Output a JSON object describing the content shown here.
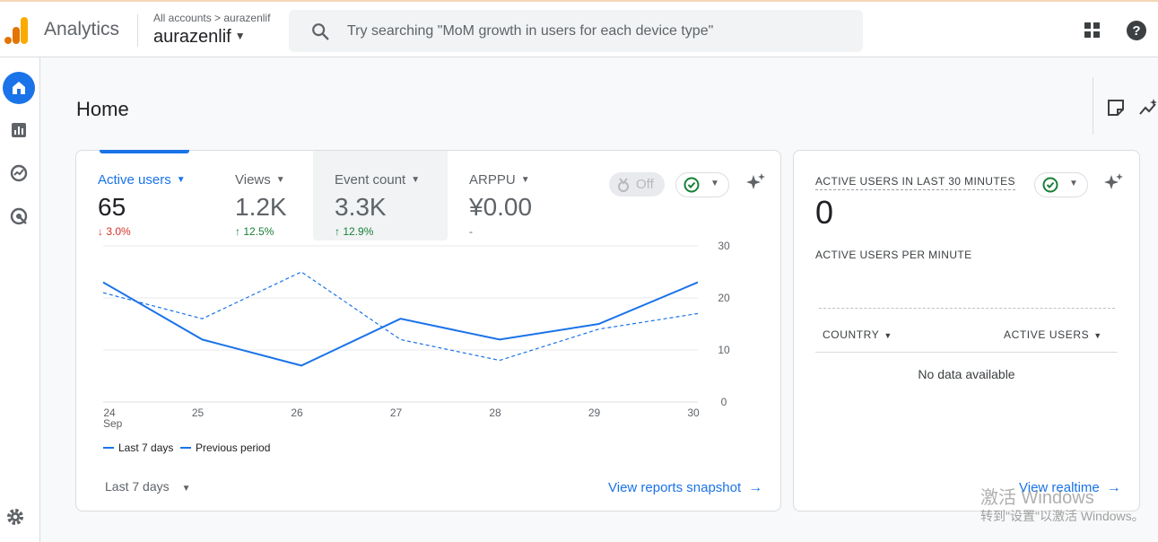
{
  "app": {
    "name": "Analytics"
  },
  "account": {
    "breadcrumb": "All accounts > aurazenlif",
    "name": "aurazenlif"
  },
  "search": {
    "placeholder": "Try searching \"MoM growth in users for each device type\""
  },
  "page": {
    "title": "Home"
  },
  "icons": {
    "logo": "analytics-logo-icon",
    "search": "search-icon",
    "apps": "apps-grid-icon",
    "help": "help-icon",
    "rail": [
      "home-icon",
      "reports-icon",
      "explore-icon",
      "advertising-icon"
    ],
    "settings": "gear-icon",
    "note": "note-icon",
    "insights": "insights-icon",
    "sparkle": "sparkle-icon"
  },
  "colors": {
    "accent": "#1a73e8",
    "up": "#188038",
    "down": "#d93025"
  },
  "metrics": [
    {
      "label": "Active users",
      "value": "65",
      "delta": "↓ 3.0%",
      "trend": "down",
      "selected": true
    },
    {
      "label": "Views",
      "value": "1.2K",
      "delta": "↑ 12.5%",
      "trend": "up"
    },
    {
      "label": "Event count",
      "value": "3.3K",
      "delta": "↑ 12.9%",
      "trend": "up"
    },
    {
      "label": "ARPPU",
      "value": "¥0.00",
      "delta": "-",
      "trend": "none"
    }
  ],
  "toolbar": {
    "off_label": "Off"
  },
  "chart_data": {
    "type": "line",
    "categories": [
      "24",
      "25",
      "26",
      "27",
      "28",
      "29",
      "30"
    ],
    "x_sublabel": "Sep",
    "series": [
      {
        "name": "Last 7 days",
        "style": "solid",
        "values": [
          23,
          12,
          7,
          16,
          12,
          15,
          23
        ]
      },
      {
        "name": "Previous period",
        "style": "dashed",
        "values": [
          21,
          16,
          25,
          12,
          8,
          14,
          17
        ]
      }
    ],
    "ylim": [
      0,
      30
    ],
    "yticks": [
      "0",
      "10",
      "20",
      "30"
    ],
    "grid": true,
    "legend": "bottom-left"
  },
  "footer": {
    "range": "Last 7 days",
    "link": "View reports snapshot"
  },
  "realtime": {
    "title": "ACTIVE USERS IN LAST 30 MINUTES",
    "value": "0",
    "per_minute": "ACTIVE USERS PER MINUTE",
    "col_country": "COUNTRY",
    "col_users": "ACTIVE USERS",
    "empty": "No data available",
    "link": "View realtime"
  },
  "watermark": {
    "line1": "激活 Windows",
    "line2": "转到\"设置\"以激活 Windows。"
  }
}
